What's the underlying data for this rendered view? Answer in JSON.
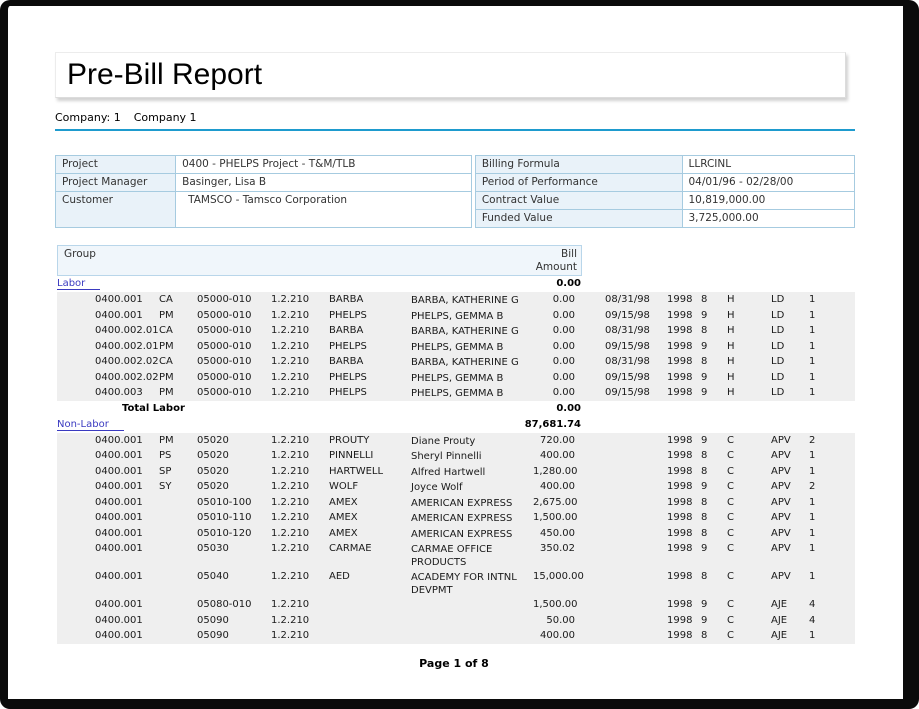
{
  "report": {
    "title": "Pre-Bill Report",
    "company_label": "Company: 1",
    "company_name": "Company 1",
    "page_footer": "Page 1 of 8"
  },
  "colors": {
    "accent_rule": "#1e9bce",
    "link": "#3a3ac0",
    "row_stripe": "#efefef",
    "table_border": "#a6cbe0",
    "header_fill": "#f0f6fb",
    "frame": "#0b0b0b"
  },
  "info_left": {
    "rows": [
      {
        "label": "Project",
        "value": "0400 - PHELPS Project - T&M/TLB"
      },
      {
        "label": "Project Manager",
        "value": "Basinger, Lisa B"
      },
      {
        "label": "Customer",
        "value": "TAMSCO - Tamsco Corporation"
      }
    ]
  },
  "info_right": {
    "rows": [
      {
        "label": "Billing Formula",
        "value": "LLRCINL"
      },
      {
        "label": "Period of Performance",
        "value": "04/01/96 - 02/28/00"
      },
      {
        "label": "Contract Value",
        "value": "10,819,000.00"
      },
      {
        "label": "Funded Value",
        "value": "3,725,000.00"
      }
    ]
  },
  "table": {
    "header": {
      "group": "Group",
      "bill": "Bill",
      "amount": "Amount"
    },
    "sections": [
      {
        "name": "Labor",
        "amount": "0.00",
        "total_label": "Total Labor",
        "total_amount": "0.00",
        "rows": [
          [
            "0400.001",
            "CA",
            "05000-010",
            "1.2.210",
            "BARBA",
            "BARBA, KATHERINE G",
            "0.00",
            "08/31/98",
            "1998",
            "8",
            "H",
            "LD",
            "1"
          ],
          [
            "0400.001",
            "PM",
            "05000-010",
            "1.2.210",
            "PHELPS",
            "PHELPS, GEMMA B",
            "0.00",
            "09/15/98",
            "1998",
            "9",
            "H",
            "LD",
            "1"
          ],
          [
            "0400.002.01",
            "CA",
            "05000-010",
            "1.2.210",
            "BARBA",
            "BARBA, KATHERINE G",
            "0.00",
            "08/31/98",
            "1998",
            "8",
            "H",
            "LD",
            "1"
          ],
          [
            "0400.002.01",
            "PM",
            "05000-010",
            "1.2.210",
            "PHELPS",
            "PHELPS, GEMMA B",
            "0.00",
            "09/15/98",
            "1998",
            "9",
            "H",
            "LD",
            "1"
          ],
          [
            "0400.002.02",
            "CA",
            "05000-010",
            "1.2.210",
            "BARBA",
            "BARBA, KATHERINE G",
            "0.00",
            "08/31/98",
            "1998",
            "8",
            "H",
            "LD",
            "1"
          ],
          [
            "0400.002.02",
            "PM",
            "05000-010",
            "1.2.210",
            "PHELPS",
            "PHELPS, GEMMA B",
            "0.00",
            "09/15/98",
            "1998",
            "9",
            "H",
            "LD",
            "1"
          ],
          [
            "0400.003",
            "PM",
            "05000-010",
            "1.2.210",
            "PHELPS",
            "PHELPS, GEMMA B",
            "0.00",
            "09/15/98",
            "1998",
            "9",
            "H",
            "LD",
            "1"
          ]
        ]
      },
      {
        "name": "Non-Labor",
        "amount": "87,681.74",
        "rows": [
          [
            "0400.001",
            "PM",
            "05020",
            "1.2.210",
            "PROUTY",
            "Diane Prouty",
            "720.00",
            "",
            "1998",
            "9",
            "C",
            "APV",
            "2"
          ],
          [
            "0400.001",
            "PS",
            "05020",
            "1.2.210",
            "PINNELLI",
            "Sheryl Pinnelli",
            "400.00",
            "",
            "1998",
            "8",
            "C",
            "APV",
            "1"
          ],
          [
            "0400.001",
            "SP",
            "05020",
            "1.2.210",
            "HARTWELL",
            "Alfred Hartwell",
            "1,280.00",
            "",
            "1998",
            "8",
            "C",
            "APV",
            "1"
          ],
          [
            "0400.001",
            "SY",
            "05020",
            "1.2.210",
            "WOLF",
            "Joyce Wolf",
            "400.00",
            "",
            "1998",
            "9",
            "C",
            "APV",
            "2"
          ],
          [
            "0400.001",
            "",
            "05010-100",
            "1.2.210",
            "AMEX",
            "AMERICAN EXPRESS",
            "2,675.00",
            "",
            "1998",
            "8",
            "C",
            "APV",
            "1"
          ],
          [
            "0400.001",
            "",
            "05010-110",
            "1.2.210",
            "AMEX",
            "AMERICAN EXPRESS",
            "1,500.00",
            "",
            "1998",
            "8",
            "C",
            "APV",
            "1"
          ],
          [
            "0400.001",
            "",
            "05010-120",
            "1.2.210",
            "AMEX",
            "AMERICAN EXPRESS",
            "450.00",
            "",
            "1998",
            "8",
            "C",
            "APV",
            "1"
          ],
          [
            "0400.001",
            "",
            "05030",
            "1.2.210",
            "CARMAE",
            "CARMAE OFFICE PRODUCTS",
            "350.02",
            "",
            "1998",
            "9",
            "C",
            "APV",
            "1"
          ],
          [
            "0400.001",
            "",
            "05040",
            "1.2.210",
            "AED",
            "ACADEMY FOR INTNL DEVPMT",
            "15,000.00",
            "",
            "1998",
            "8",
            "C",
            "APV",
            "1"
          ],
          [
            "0400.001",
            "",
            "05080-010",
            "1.2.210",
            "",
            "",
            "1,500.00",
            "",
            "1998",
            "9",
            "C",
            "AJE",
            "4"
          ],
          [
            "0400.001",
            "",
            "05090",
            "1.2.210",
            "",
            "",
            "50.00",
            "",
            "1998",
            "9",
            "C",
            "AJE",
            "4"
          ],
          [
            "0400.001",
            "",
            "05090",
            "1.2.210",
            "",
            "",
            "400.00",
            "",
            "1998",
            "8",
            "C",
            "AJE",
            "1"
          ]
        ]
      }
    ]
  }
}
